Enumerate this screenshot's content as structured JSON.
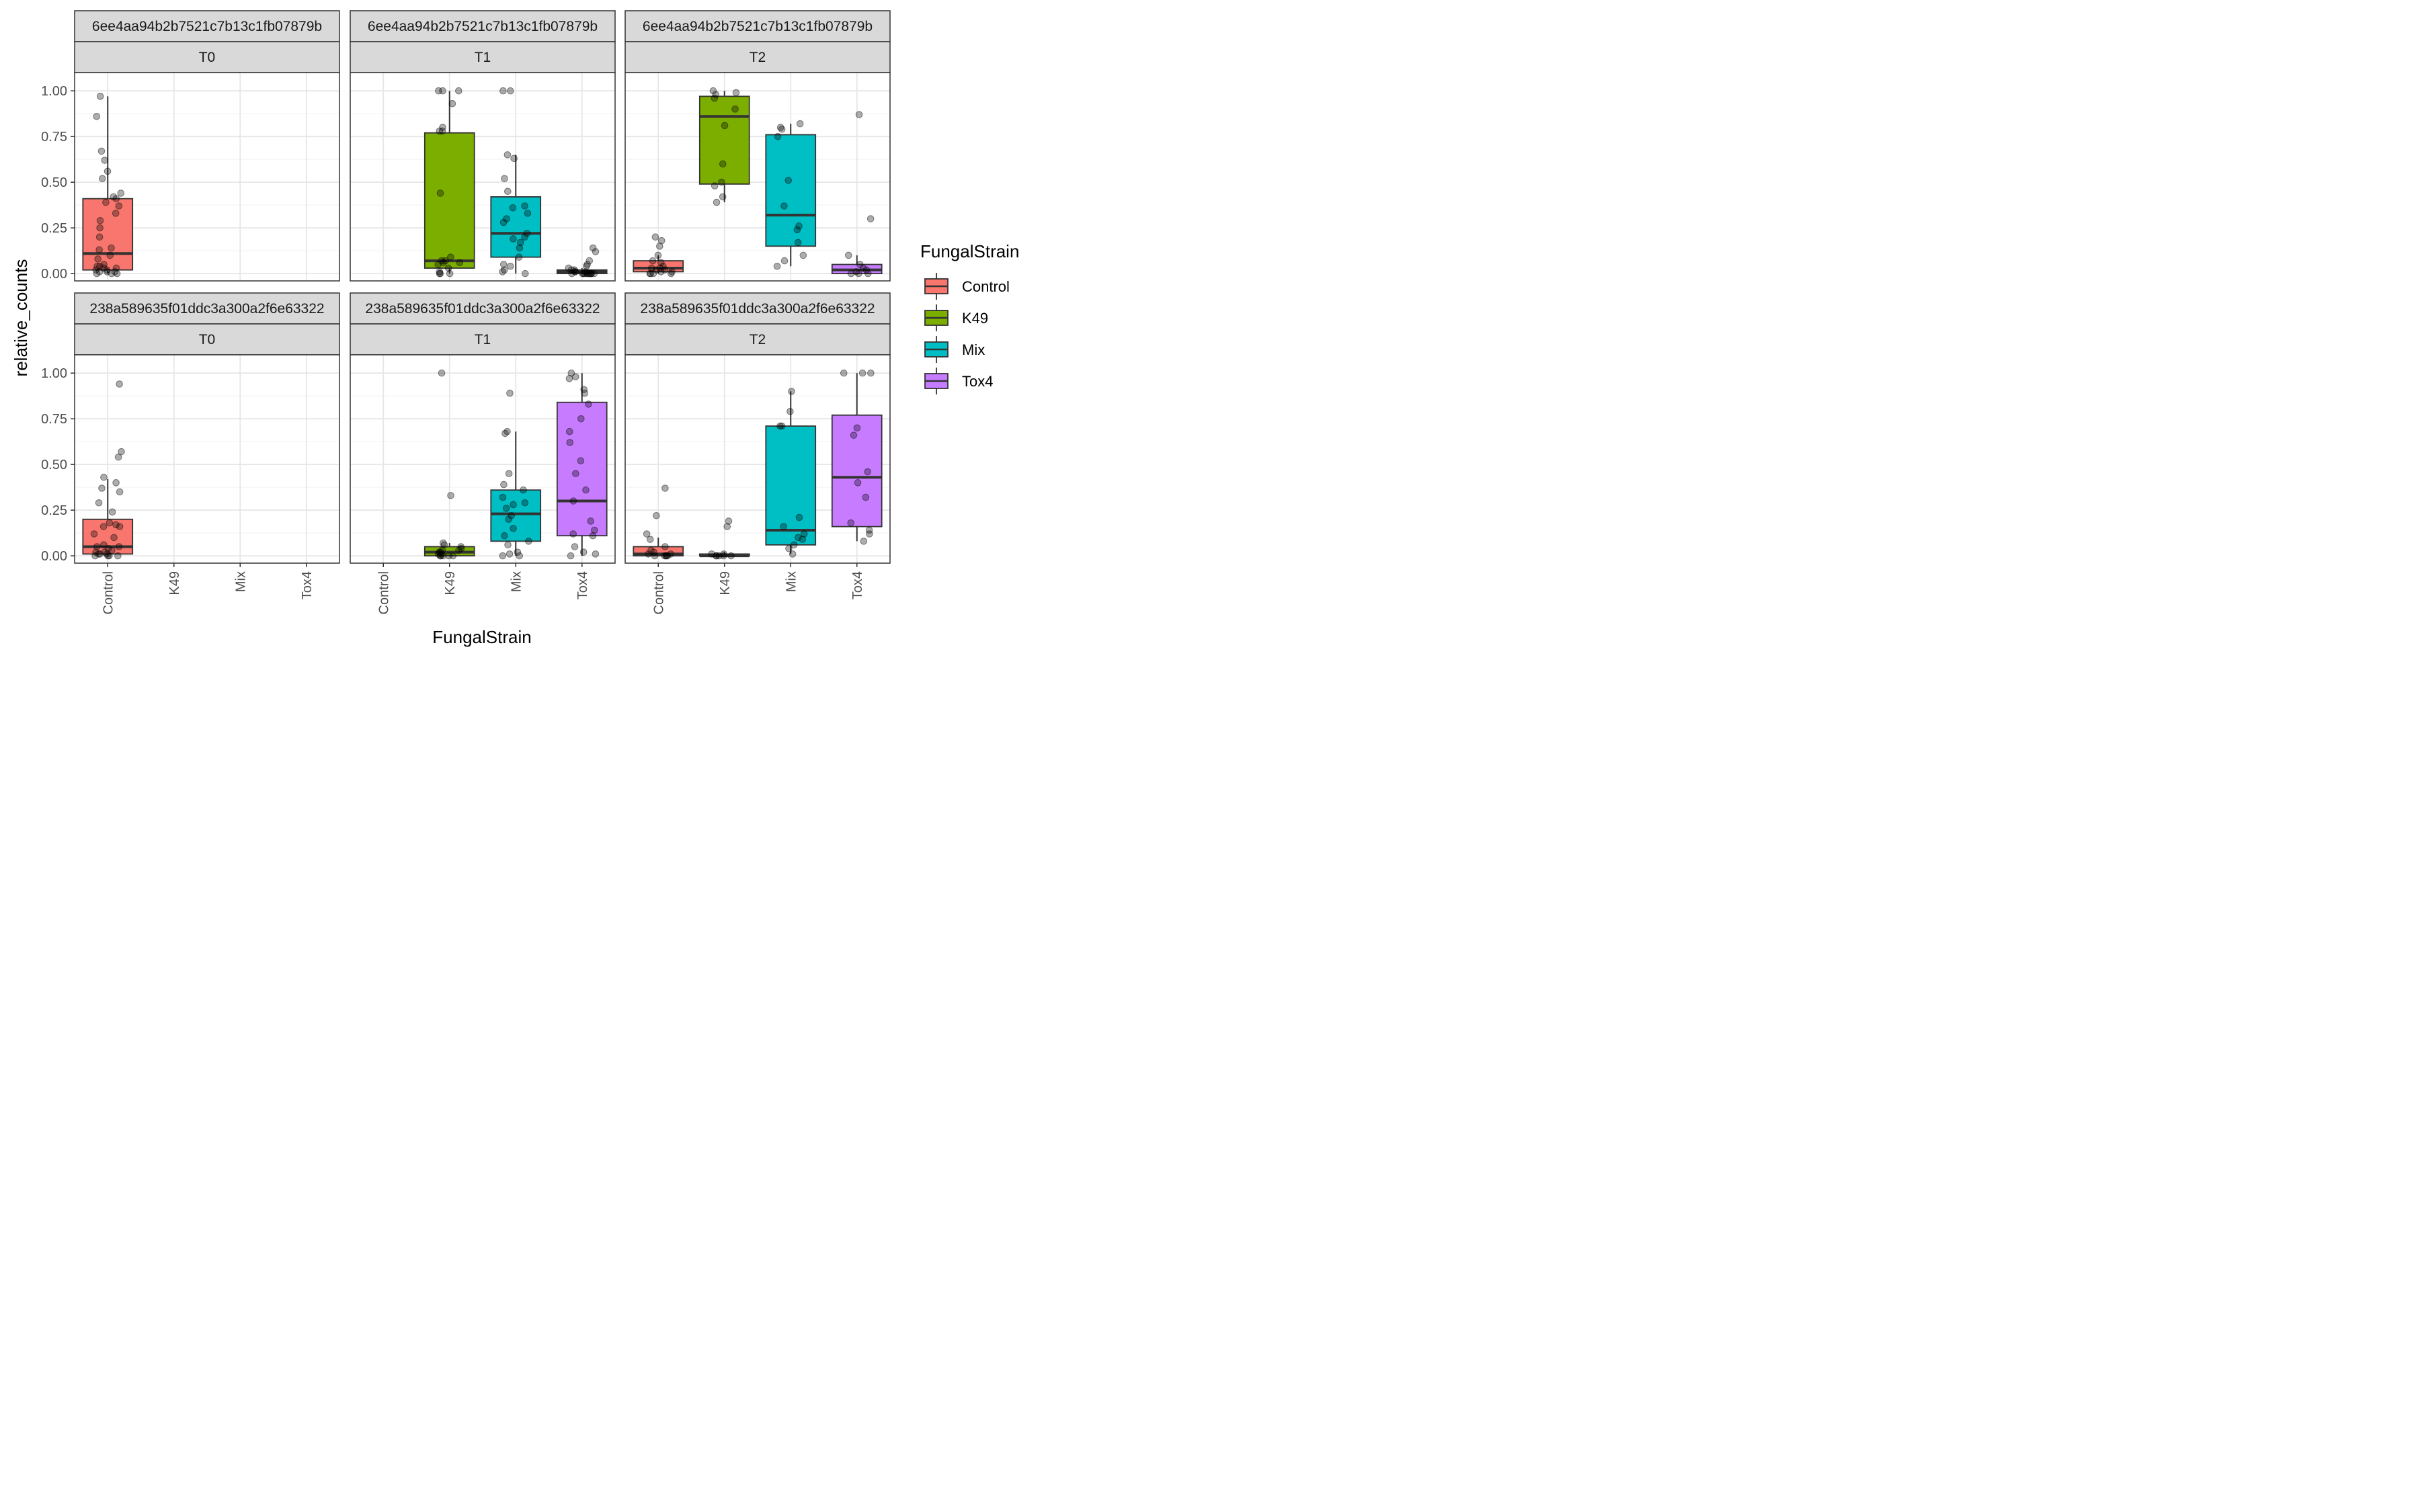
{
  "chart_data": {
    "type": "box",
    "xlabel": "FungalStrain",
    "ylabel": "relative_counts",
    "ylim": [
      -0.04,
      1.1
    ],
    "y_ticks": [
      "0.00",
      "0.25",
      "0.50",
      "0.75",
      "1.00"
    ],
    "categories": [
      "Control",
      "K49",
      "Mix",
      "Tox4"
    ],
    "legend": {
      "title": "FungalStrain",
      "placement": "right",
      "items": [
        {
          "name": "Control",
          "color": "#F8766D"
        },
        {
          "name": "K49",
          "color": "#7CAE00"
        },
        {
          "name": "Mix",
          "color": "#00BFC4"
        },
        {
          "name": "Tox4",
          "color": "#C77CFF"
        }
      ]
    },
    "panels": [
      {
        "strip_top": "6ee4aa94b2b7521c7b13c1fb07879b",
        "strip_time": "T0",
        "boxes": [
          {
            "category": "Control",
            "q1": 0.02,
            "median": 0.11,
            "q3": 0.41,
            "whisker_low": 0.0,
            "whisker_high": 0.97,
            "points": [
              0.97,
              0.86,
              0.67,
              0.62,
              0.56,
              0.52,
              0.44,
              0.42,
              0.41,
              0.39,
              0.37,
              0.33,
              0.29,
              0.25,
              0.2,
              0.14,
              0.13,
              0.1,
              0.08,
              0.05,
              0.04,
              0.04,
              0.03,
              0.03,
              0.02,
              0.02,
              0.01,
              0.01,
              0.01,
              0.0,
              0.0,
              0.0
            ]
          }
        ]
      },
      {
        "strip_top": "6ee4aa94b2b7521c7b13c1fb07879b",
        "strip_time": "T1",
        "boxes": [
          {
            "category": "K49",
            "q1": 0.03,
            "median": 0.07,
            "q3": 0.77,
            "whisker_low": 0.0,
            "whisker_high": 1.0,
            "points": [
              1.0,
              1.0,
              1.0,
              0.93,
              0.8,
              0.78,
              0.78,
              0.44,
              0.09,
              0.07,
              0.07,
              0.06,
              0.06,
              0.05,
              0.03,
              0.01,
              0.0,
              0.0,
              0.0
            ]
          },
          {
            "category": "Mix",
            "q1": 0.09,
            "median": 0.22,
            "q3": 0.42,
            "whisker_low": 0.0,
            "whisker_high": 0.65,
            "points": [
              1.0,
              1.0,
              0.65,
              0.63,
              0.52,
              0.45,
              0.37,
              0.36,
              0.33,
              0.3,
              0.28,
              0.22,
              0.2,
              0.19,
              0.17,
              0.14,
              0.09,
              0.05,
              0.04,
              0.02,
              0.01,
              0.0
            ]
          },
          {
            "category": "Tox4",
            "q1": 0.0,
            "median": 0.01,
            "q3": 0.02,
            "whisker_low": 0.0,
            "whisker_high": 0.03,
            "points": [
              0.14,
              0.12,
              0.07,
              0.05,
              0.04,
              0.03,
              0.02,
              0.02,
              0.01,
              0.01,
              0.01,
              0.0,
              0.0,
              0.0,
              0.0,
              0.0,
              0.0,
              0.0,
              0.0,
              0.0,
              0.0,
              0.0
            ]
          }
        ]
      },
      {
        "strip_top": "6ee4aa94b2b7521c7b13c1fb07879b",
        "strip_time": "T2",
        "boxes": [
          {
            "category": "Control",
            "q1": 0.01,
            "median": 0.03,
            "q3": 0.07,
            "whisker_low": 0.0,
            "whisker_high": 0.1,
            "points": [
              0.2,
              0.18,
              0.15,
              0.1,
              0.07,
              0.06,
              0.04,
              0.03,
              0.03,
              0.02,
              0.02,
              0.01,
              0.01,
              0.0,
              0.0,
              0.0,
              0.0
            ]
          },
          {
            "category": "K49",
            "q1": 0.49,
            "median": 0.86,
            "q3": 0.97,
            "whisker_low": 0.39,
            "whisker_high": 1.0,
            "points": [
              1.0,
              0.99,
              0.98,
              0.96,
              0.9,
              0.81,
              0.6,
              0.5,
              0.48,
              0.42,
              0.39
            ]
          },
          {
            "category": "Mix",
            "q1": 0.15,
            "median": 0.32,
            "q3": 0.76,
            "whisker_low": 0.04,
            "whisker_high": 0.82,
            "points": [
              0.82,
              0.8,
              0.79,
              0.75,
              0.51,
              0.37,
              0.26,
              0.24,
              0.17,
              0.1,
              0.07,
              0.04
            ]
          },
          {
            "category": "Tox4",
            "q1": 0.0,
            "median": 0.02,
            "q3": 0.05,
            "whisker_low": 0.0,
            "whisker_high": 0.1,
            "points": [
              0.87,
              0.3,
              0.1,
              0.05,
              0.03,
              0.02,
              0.01,
              0.0,
              0.0,
              0.0
            ]
          }
        ]
      },
      {
        "strip_top": "238a589635f01ddc3a300a2f6e63322",
        "strip_time": "T0",
        "boxes": [
          {
            "category": "Control",
            "q1": 0.01,
            "median": 0.05,
            "q3": 0.2,
            "whisker_low": 0.0,
            "whisker_high": 0.42,
            "points": [
              0.94,
              0.57,
              0.54,
              0.43,
              0.4,
              0.37,
              0.35,
              0.29,
              0.24,
              0.18,
              0.17,
              0.16,
              0.16,
              0.12,
              0.1,
              0.06,
              0.05,
              0.05,
              0.04,
              0.03,
              0.02,
              0.02,
              0.01,
              0.01,
              0.01,
              0.0,
              0.0,
              0.0,
              0.0
            ]
          }
        ]
      },
      {
        "strip_top": "238a589635f01ddc3a300a2f6e63322",
        "strip_time": "T1",
        "boxes": [
          {
            "category": "K49",
            "q1": 0.0,
            "median": 0.02,
            "q3": 0.05,
            "whisker_low": 0.0,
            "whisker_high": 0.07,
            "points": [
              1.0,
              0.33,
              0.07,
              0.06,
              0.05,
              0.04,
              0.03,
              0.03,
              0.02,
              0.02,
              0.01,
              0.01,
              0.0,
              0.0,
              0.0,
              0.0,
              0.0
            ]
          },
          {
            "category": "Mix",
            "q1": 0.08,
            "median": 0.23,
            "q3": 0.36,
            "whisker_low": 0.0,
            "whisker_high": 0.68,
            "points": [
              0.89,
              0.68,
              0.67,
              0.45,
              0.39,
              0.36,
              0.32,
              0.29,
              0.28,
              0.26,
              0.22,
              0.2,
              0.15,
              0.11,
              0.08,
              0.06,
              0.02,
              0.01,
              0.0,
              0.0
            ]
          },
          {
            "category": "Tox4",
            "q1": 0.11,
            "median": 0.3,
            "q3": 0.84,
            "whisker_low": 0.0,
            "whisker_high": 1.0,
            "points": [
              1.0,
              0.98,
              0.97,
              0.91,
              0.89,
              0.83,
              0.75,
              0.68,
              0.62,
              0.52,
              0.45,
              0.36,
              0.3,
              0.19,
              0.14,
              0.12,
              0.11,
              0.05,
              0.02,
              0.01,
              0.0
            ]
          }
        ]
      },
      {
        "strip_top": "238a589635f01ddc3a300a2f6e63322",
        "strip_time": "T2",
        "boxes": [
          {
            "category": "Control",
            "q1": 0.0,
            "median": 0.01,
            "q3": 0.05,
            "whisker_low": 0.0,
            "whisker_high": 0.1,
            "points": [
              0.37,
              0.22,
              0.12,
              0.09,
              0.05,
              0.03,
              0.02,
              0.01,
              0.01,
              0.0,
              0.0,
              0.0,
              0.0,
              0.0
            ]
          },
          {
            "category": "K49",
            "q1": 0.0,
            "median": 0.0,
            "q3": 0.01,
            "whisker_low": 0.0,
            "whisker_high": 0.02,
            "points": [
              0.19,
              0.16,
              0.01,
              0.01,
              0.0,
              0.0,
              0.0,
              0.0,
              0.0
            ]
          },
          {
            "category": "Mix",
            "q1": 0.06,
            "median": 0.14,
            "q3": 0.71,
            "whisker_low": 0.01,
            "whisker_high": 0.9,
            "points": [
              0.9,
              0.79,
              0.71,
              0.71,
              0.21,
              0.16,
              0.12,
              0.1,
              0.09,
              0.06,
              0.04,
              0.01
            ]
          },
          {
            "category": "Tox4",
            "q1": 0.16,
            "median": 0.43,
            "q3": 0.77,
            "whisker_low": 0.08,
            "whisker_high": 1.0,
            "points": [
              1.0,
              1.0,
              1.0,
              0.7,
              0.66,
              0.46,
              0.4,
              0.32,
              0.18,
              0.14,
              0.12,
              0.08
            ]
          }
        ]
      }
    ]
  }
}
